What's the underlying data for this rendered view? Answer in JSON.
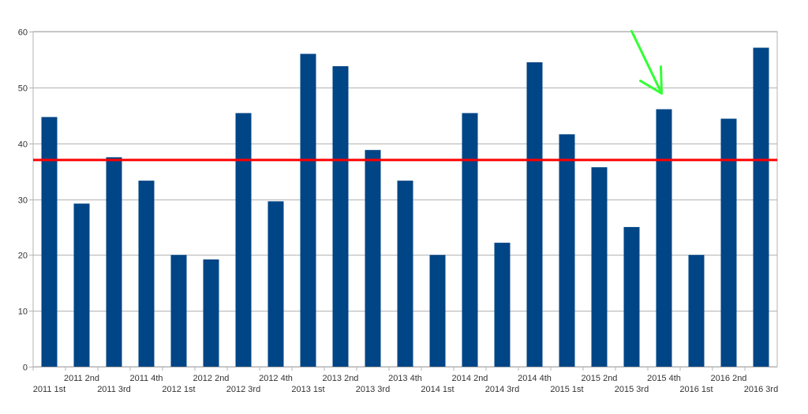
{
  "chart_data": {
    "type": "bar",
    "categories": [
      "2011 1st",
      "2011 2nd",
      "2011 3rd",
      "2011 4th",
      "2012 1st",
      "2012 2nd",
      "2012 3rd",
      "2012 4th",
      "2013 1st",
      "2013 2nd",
      "2013 3rd",
      "2013 4th",
      "2014 1st",
      "2014 2nd",
      "2014 3rd",
      "2014 4th",
      "2015 1st",
      "2015 2nd",
      "2015 3rd",
      "2015 4th",
      "2016 1st",
      "2016 2nd",
      "2016 3rd"
    ],
    "values": [
      44.7,
      29.2,
      37.5,
      33.3,
      20.0,
      19.2,
      45.4,
      29.6,
      56.0,
      53.8,
      38.8,
      33.3,
      20.0,
      45.4,
      22.2,
      54.5,
      41.6,
      35.7,
      25.0,
      46.1,
      20.0,
      44.4,
      57.1
    ],
    "ylim": [
      0,
      60
    ],
    "yticks": [
      0,
      10,
      20,
      30,
      40,
      50,
      60
    ],
    "reference_line": {
      "value": 37,
      "color": "#ff0000"
    },
    "highlight": {
      "category": "2015 4th",
      "marker": "arrow",
      "color": "#33ff33"
    },
    "bar_color": "#004586",
    "grid": true,
    "title": "",
    "xlabel": "",
    "ylabel": ""
  }
}
